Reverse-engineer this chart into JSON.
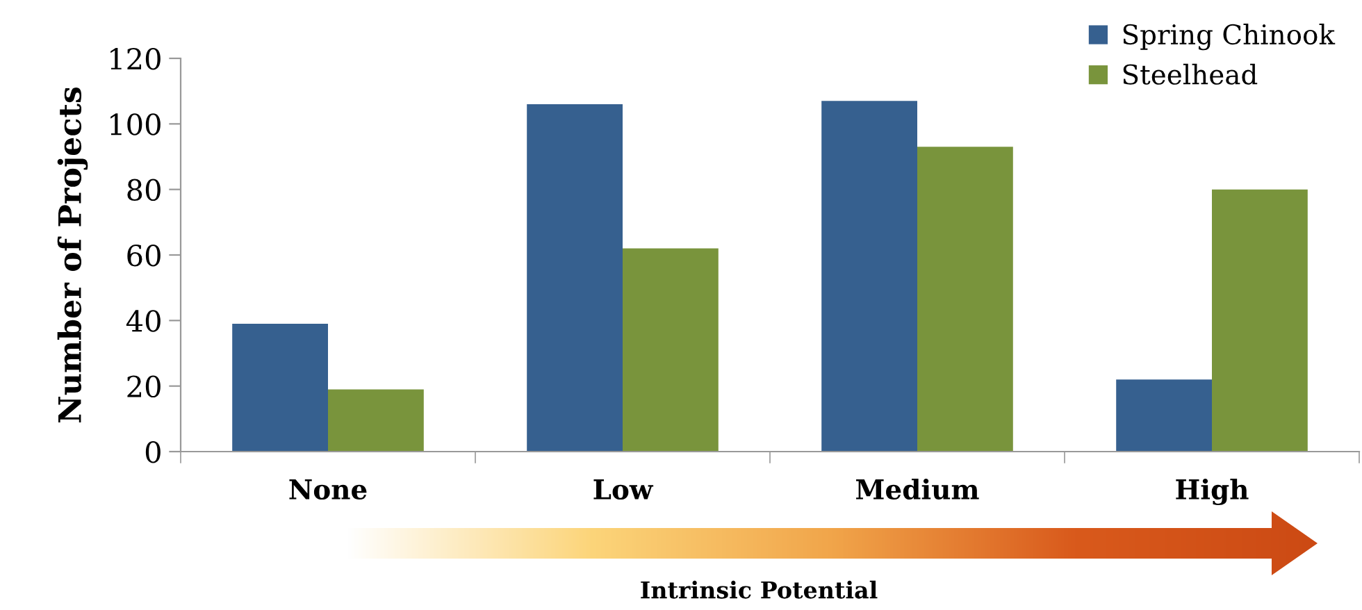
{
  "chart_data": {
    "type": "bar",
    "xlabel": "Intrinsic Potential",
    "ylabel": "Number of Projects",
    "categories": [
      "None",
      "Low",
      "Medium",
      "High"
    ],
    "series": [
      {
        "name": "Spring Chinook",
        "color": "#36608f",
        "values": [
          39,
          106,
          107,
          22
        ]
      },
      {
        "name": "Steelhead",
        "color": "#79943c",
        "values": [
          19,
          62,
          93,
          80
        ]
      }
    ],
    "ylim": [
      0,
      120
    ],
    "yticks": [
      0,
      20,
      40,
      60,
      80,
      100,
      120
    ],
    "grid": false,
    "legend": "top right"
  }
}
